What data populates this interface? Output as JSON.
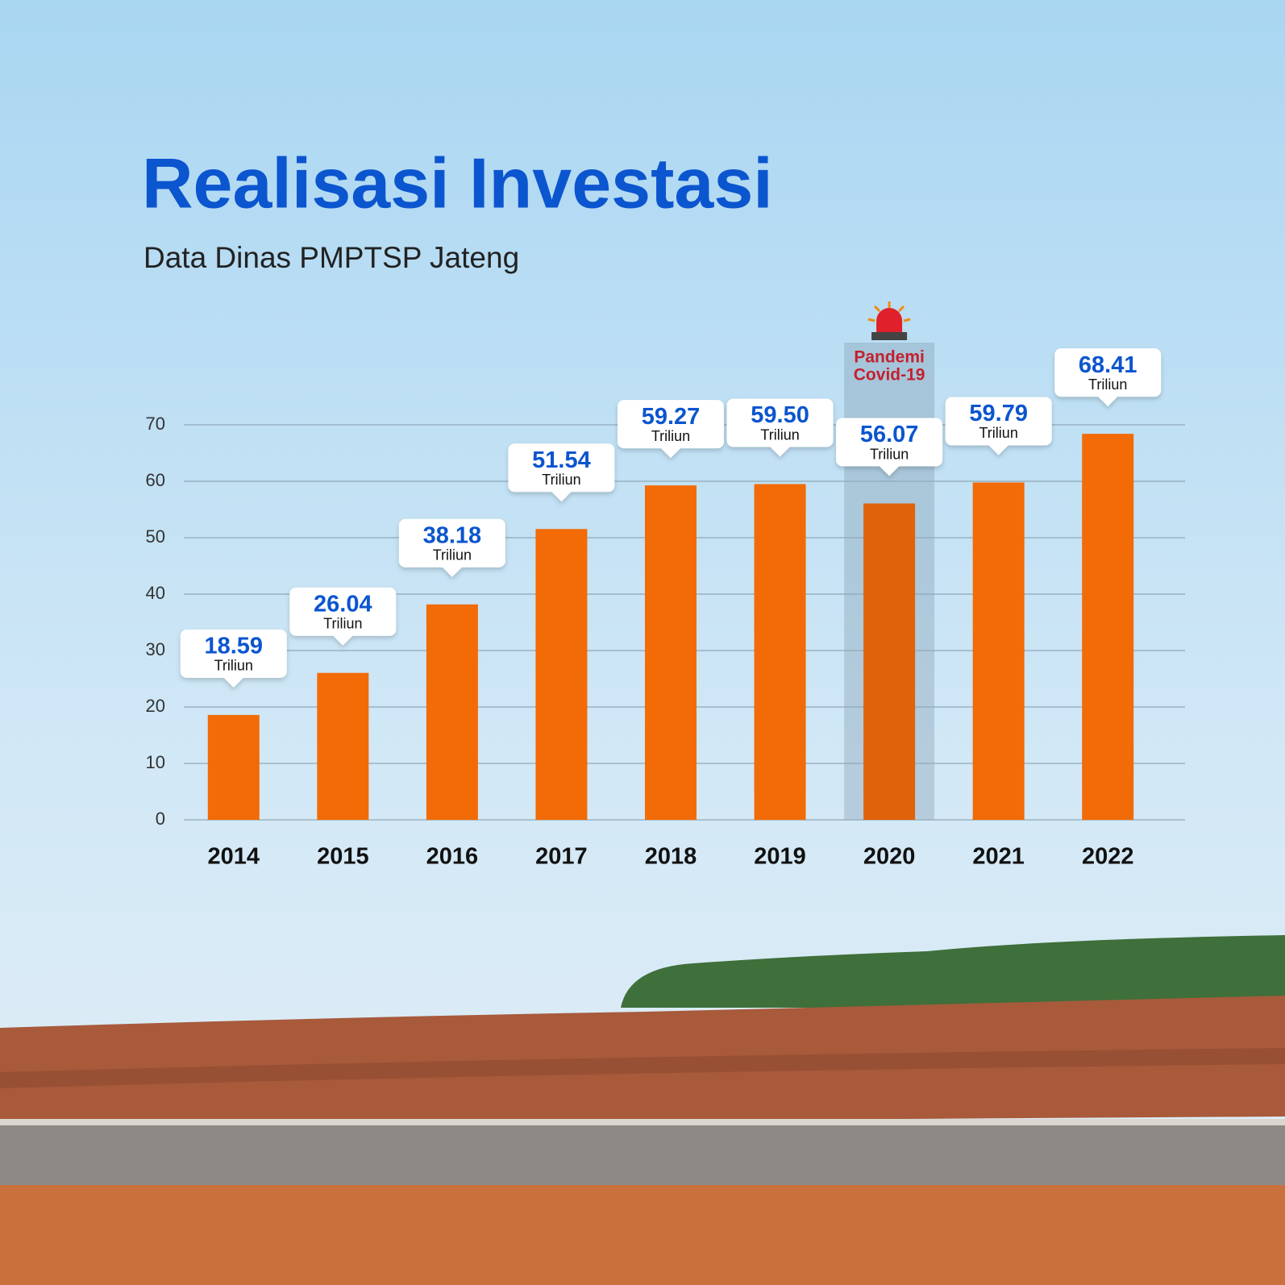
{
  "chart_data": {
    "type": "bar",
    "title": "Realisasi Investasi",
    "subtitle": "Data Dinas PMPTSP Jateng",
    "categories": [
      "2014",
      "2015",
      "2016",
      "2017",
      "2018",
      "2019",
      "2020",
      "2021",
      "2022"
    ],
    "values": [
      18.59,
      26.04,
      38.18,
      51.54,
      59.27,
      59.5,
      56.07,
      59.79,
      68.41
    ],
    "value_labels": [
      "18.59",
      "26.04",
      "38.18",
      "51.54",
      "59.27",
      "59.50",
      "56.07",
      "59.79",
      "68.41"
    ],
    "unit_label": "Triliun",
    "color": "#f26b06",
    "highlight_color": "#e0620a",
    "annotation": {
      "text": [
        "Pandemi",
        "Covid-19"
      ],
      "category": "2020"
    },
    "ylim": [
      0,
      70
    ],
    "yticks": [
      0,
      10,
      20,
      30,
      40,
      50,
      60,
      70
    ],
    "grid": true
  }
}
